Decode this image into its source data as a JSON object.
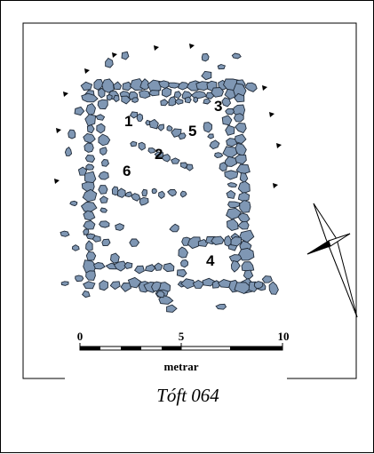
{
  "labels": {
    "room_1": "1",
    "room_2": "2",
    "room_3": "3",
    "room_4": "4",
    "room_5": "5",
    "room_6": "6"
  },
  "scale_bar": {
    "tick_start": "0",
    "tick_mid": "5",
    "tick_end": "10",
    "unit": "metrar"
  },
  "caption": "Tóft 064",
  "colors": {
    "stone_fill": "#7f97b4",
    "stone_stroke": "#1f2a38",
    "line": "#000000"
  },
  "icons": [
    "north-arrow-icon"
  ]
}
